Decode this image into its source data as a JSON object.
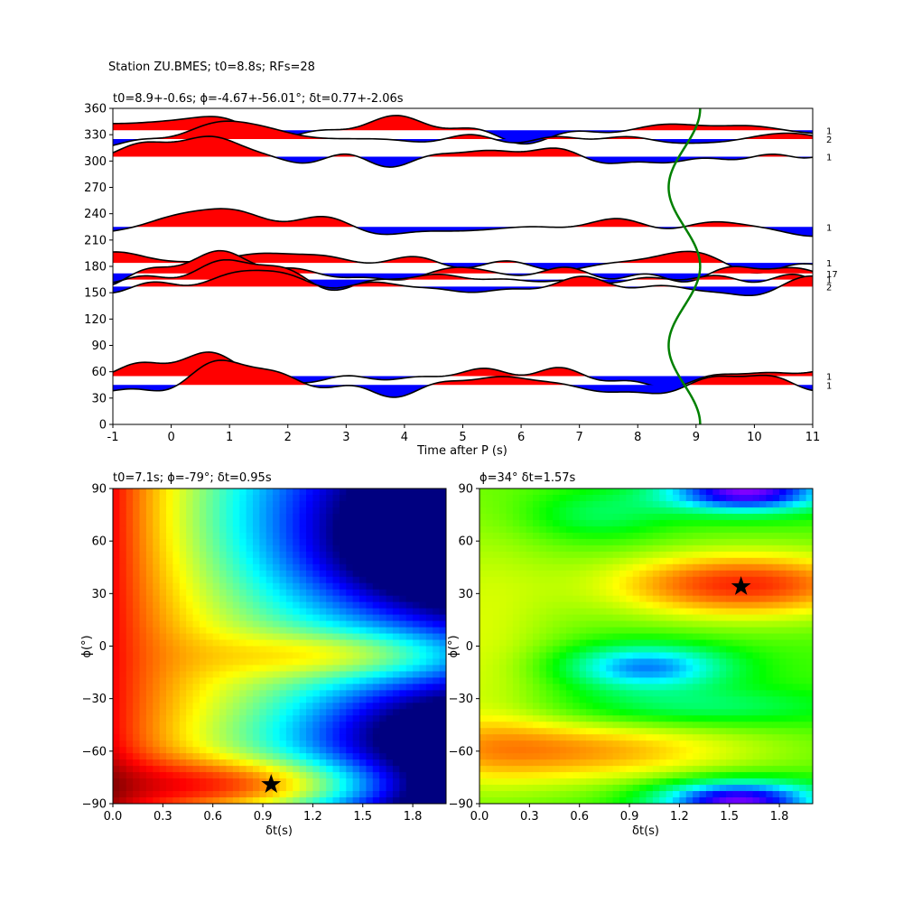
{
  "figure": {
    "suptitle": "Station ZU.BMES; t0=8.8s; RFs=28"
  },
  "chart_data": [
    {
      "type": "line",
      "title": "t0=8.9+-0.6s; ϕ=-4.67+-56.01°; δt=0.77+-2.06s",
      "xlabel": "Time after P (s)",
      "ylabel": "",
      "xlim": [
        -1,
        11
      ],
      "ylim": [
        0,
        360
      ],
      "xticks": [
        "-1",
        "0",
        "1",
        "2",
        "3",
        "4",
        "5",
        "6",
        "7",
        "8",
        "9",
        "10",
        "11"
      ],
      "yticks": [
        "0",
        "30",
        "60",
        "90",
        "120",
        "150",
        "180",
        "210",
        "240",
        "270",
        "300",
        "330",
        "360"
      ],
      "fill_positive_color": "#ff0000",
      "fill_negative_color": "#0000ff",
      "t0_curve_color": "#008000",
      "t0_curve": {
        "center": 8.8,
        "amplitude": 0.27,
        "period_deg": 180,
        "phase_deg": 0
      },
      "traces": [
        {
          "baz": 335,
          "count": "1"
        },
        {
          "baz": 325,
          "count": "2"
        },
        {
          "baz": 305,
          "count": "1"
        },
        {
          "baz": 225,
          "count": "1"
        },
        {
          "baz": 184,
          "count": "1"
        },
        {
          "baz": 172,
          "count": "17"
        },
        {
          "baz": 165,
          "count": "1"
        },
        {
          "baz": 157,
          "count": "2"
        },
        {
          "baz": 55,
          "count": "1"
        },
        {
          "baz": 45,
          "count": "1"
        }
      ]
    },
    {
      "type": "heatmap",
      "title": "t0=7.1s; ϕ=-79°; δt=0.95s",
      "xlabel": "δt(s)",
      "ylabel": "ϕ(°)",
      "xlim": [
        0,
        2
      ],
      "ylim": [
        -90,
        90
      ],
      "xticks": [
        "0.0",
        "0.3",
        "0.6",
        "0.9",
        "1.2",
        "1.5",
        "1.8"
      ],
      "yticks": [
        "−90",
        "−60",
        "−30",
        "0",
        "30",
        "60",
        "90"
      ],
      "colormap": "jet",
      "best": {
        "dt": 0.95,
        "phi": -79
      }
    },
    {
      "type": "heatmap",
      "title": "ϕ=34° δt=1.57s",
      "xlabel": "δt(s)",
      "ylabel": "ϕ(°)",
      "xlim": [
        0,
        2
      ],
      "ylim": [
        -90,
        90
      ],
      "xticks": [
        "0.0",
        "0.3",
        "0.6",
        "0.9",
        "1.2",
        "1.5",
        "1.8"
      ],
      "yticks": [
        "−90",
        "−60",
        "−30",
        "0",
        "30",
        "60",
        "90"
      ],
      "colormap": "hsv",
      "best": {
        "dt": 1.57,
        "phi": 34
      }
    }
  ]
}
